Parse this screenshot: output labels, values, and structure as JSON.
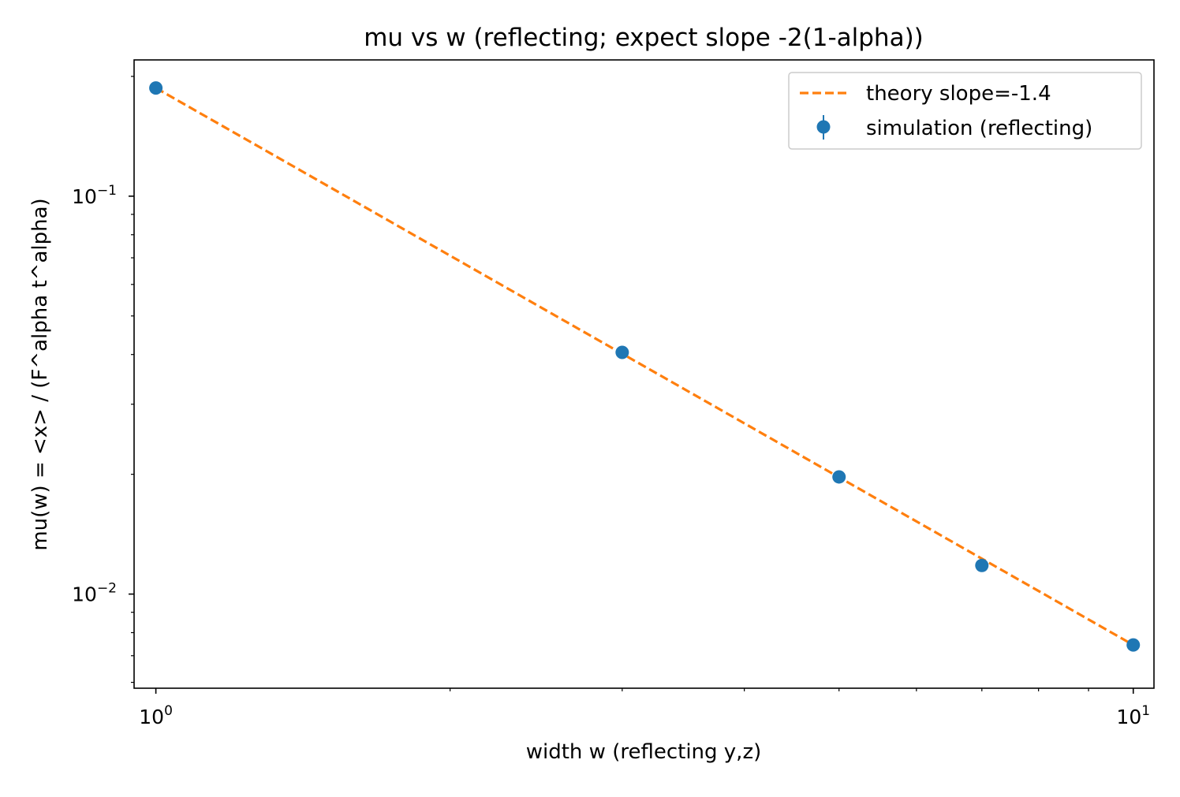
{
  "chart_data": {
    "type": "scatter",
    "title": "mu vs w (reflecting; expect slope -2(1-alpha))",
    "xlabel": "width w (reflecting y,z)",
    "ylabel": "mu(w) = <x> / (F^alpha t^alpha)",
    "xscale": "log",
    "yscale": "log",
    "xlim": [
      0.95,
      10.5
    ],
    "ylim": [
      0.0058,
      0.22
    ],
    "grid": false,
    "legend_position": "upper right",
    "x_ticks": [
      {
        "value": 1,
        "base": "10",
        "exp": "0"
      },
      {
        "value": 10,
        "base": "10",
        "exp": "1"
      }
    ],
    "y_ticks": [
      {
        "value": 0.01,
        "base": "10",
        "exp": "−2"
      },
      {
        "value": 0.1,
        "base": "10",
        "exp": "−1"
      }
    ],
    "series": [
      {
        "name": "theory slope=-1.4",
        "kind": "line",
        "style": "dashed",
        "color": "#ff7f0e",
        "slope": -1.4,
        "x": [
          1,
          10
        ],
        "y": [
          0.187,
          0.00745
        ]
      },
      {
        "name": "simulation (reflecting)",
        "kind": "errorbar-points",
        "color": "#1f77b4",
        "x": [
          1,
          3,
          5,
          7,
          10
        ],
        "y": [
          0.187,
          0.0405,
          0.0197,
          0.0118,
          0.00745
        ]
      }
    ]
  }
}
